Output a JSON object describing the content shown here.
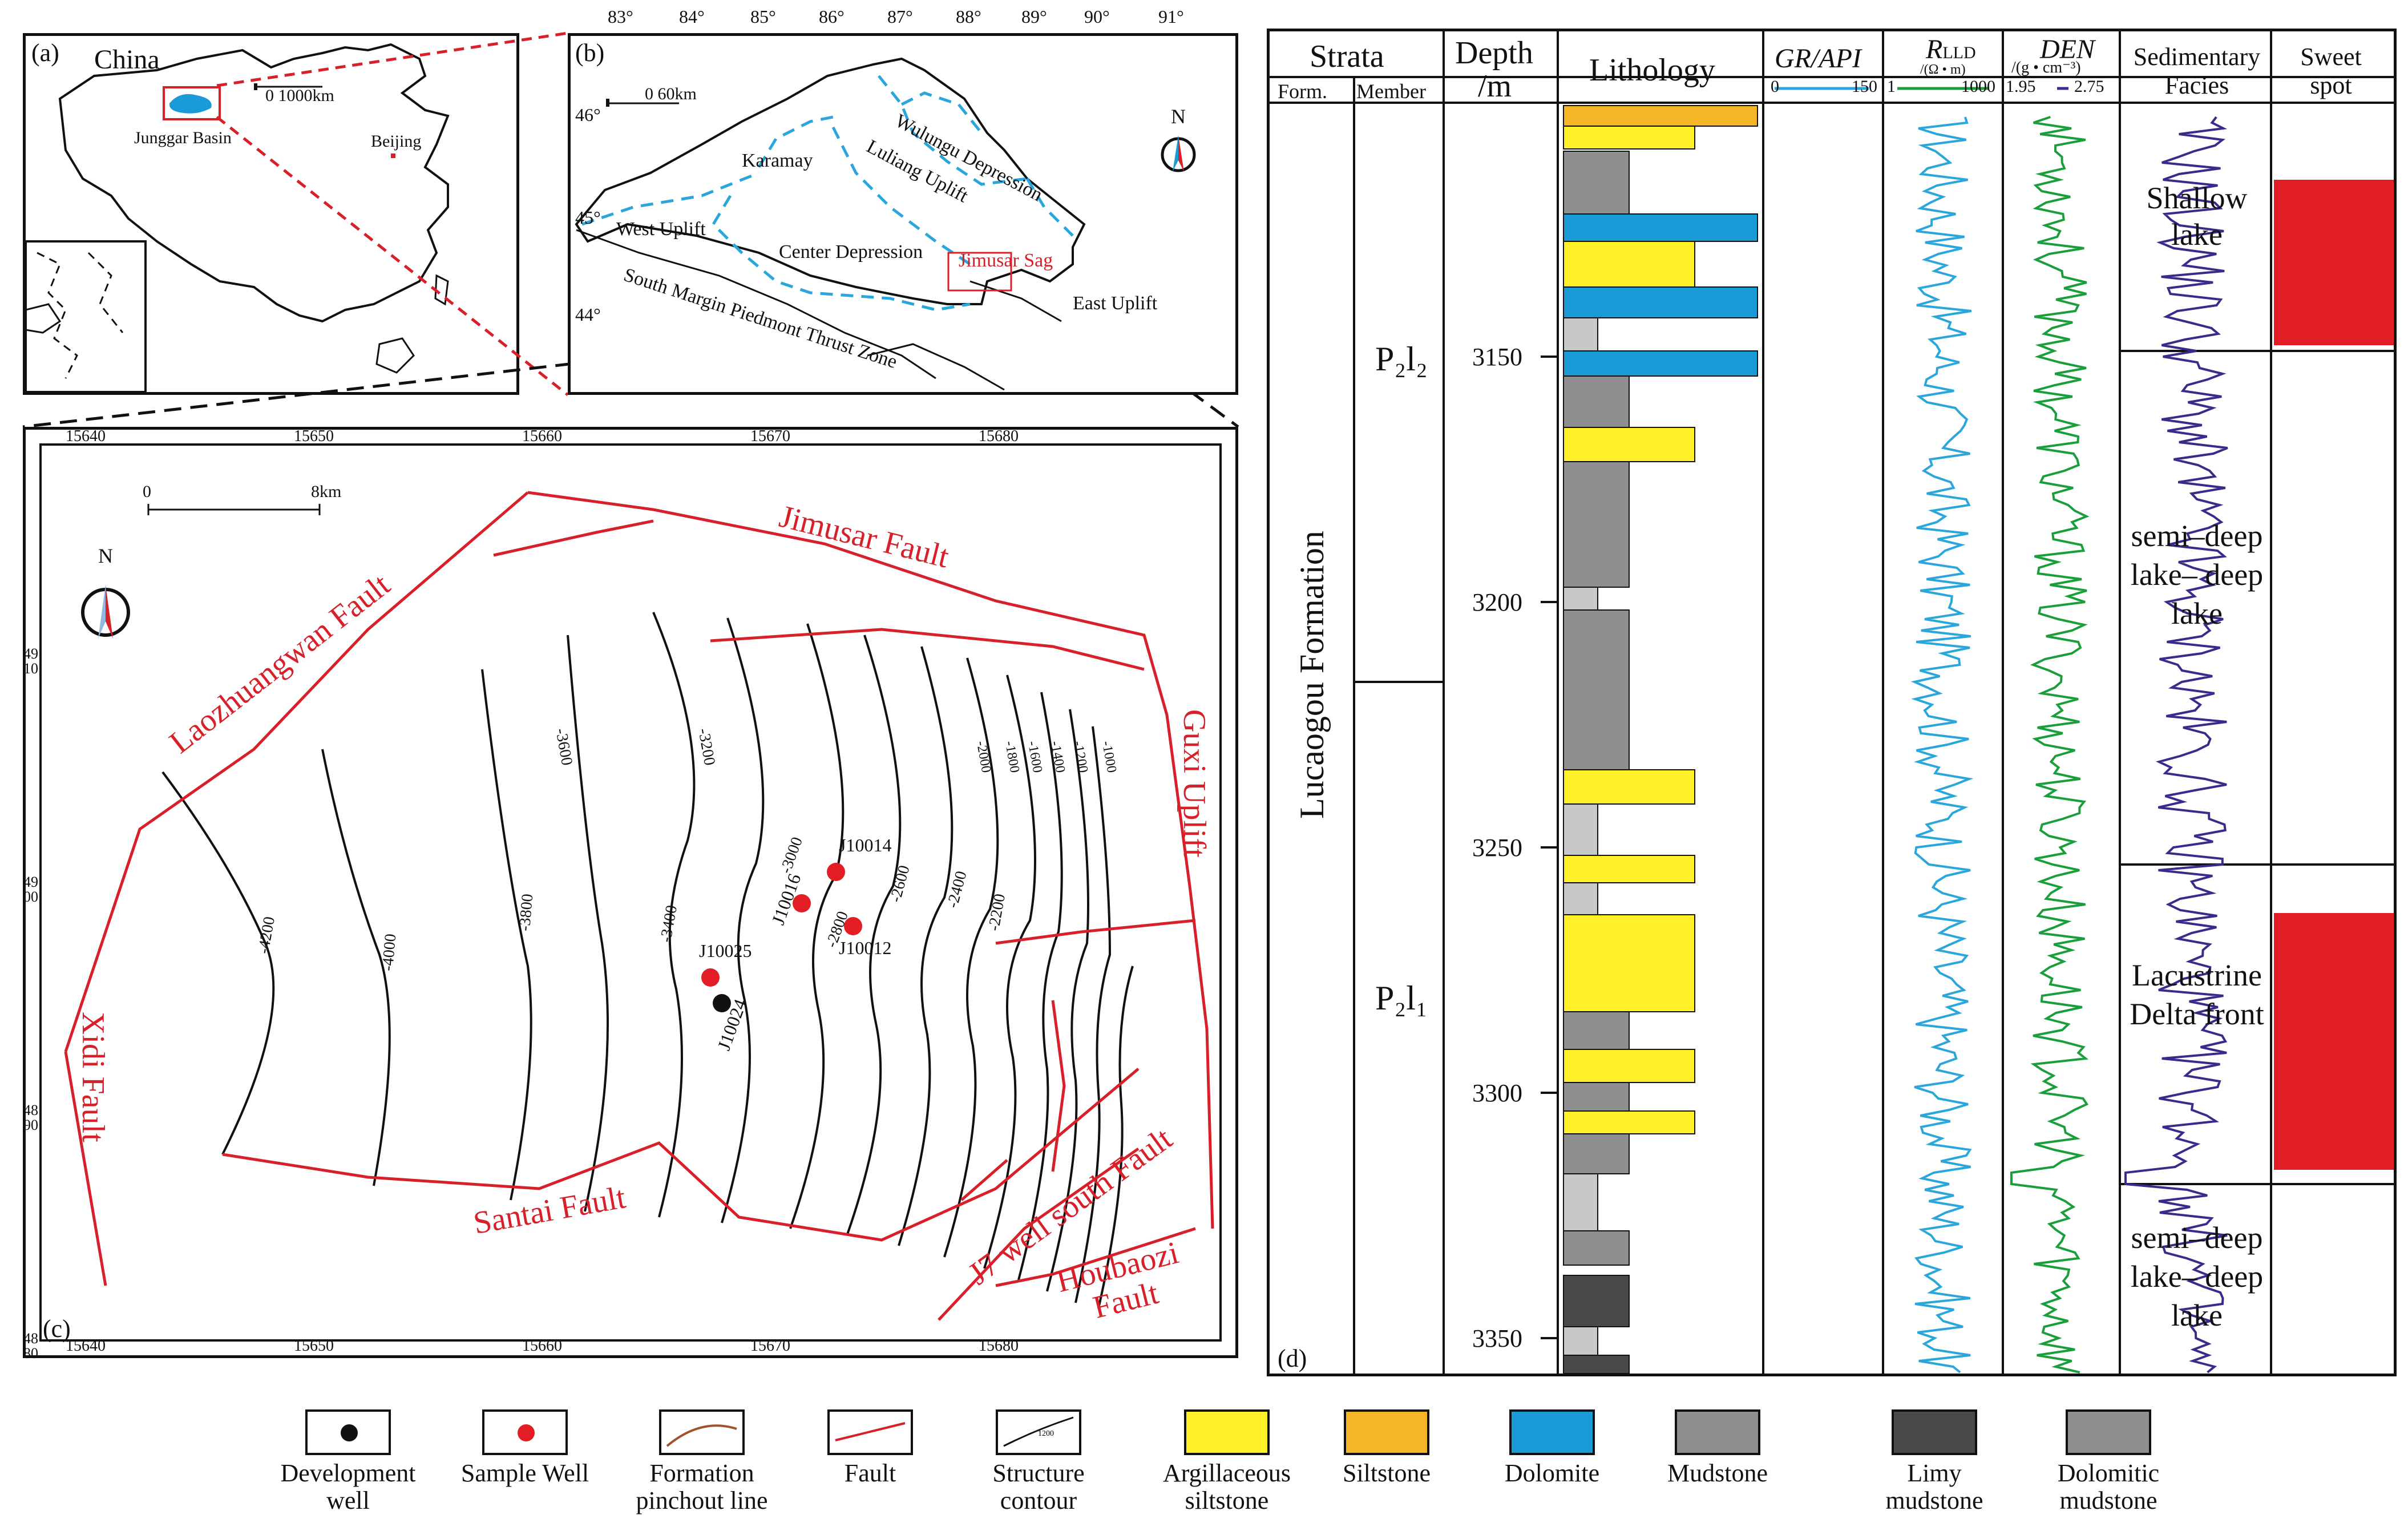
{
  "panel_a": {
    "label": "(a)",
    "country": "China",
    "scale": "0    1000km",
    "basin": "Junggar Basin",
    "city": "Beijing"
  },
  "panel_b": {
    "label": "(b)",
    "lon_ticks": [
      "83°",
      "84°",
      "85°",
      "86°",
      "87°",
      "88°",
      "89°",
      "90°",
      "91°"
    ],
    "lat_ticks": [
      "46°",
      "45°",
      "44°"
    ],
    "scale": "0     60km",
    "north": "N",
    "units": [
      "Wulungu Depression",
      "Luliang Uplift",
      "Karamay",
      "West Uplift",
      "Center Depression",
      "Jimusar Sag",
      "East Uplift",
      "South Margin Piedmont Thrust Zone"
    ]
  },
  "panel_c": {
    "label": "(c)",
    "x_ticks_top": [
      "15640",
      "15650",
      "15660",
      "15670",
      "15680"
    ],
    "x_ticks_bottom": [
      "15640",
      "15650",
      "15660",
      "15670",
      "15680"
    ],
    "y_ticks": [
      "4910",
      "4900",
      "4890",
      "4880"
    ],
    "scale": [
      "0",
      "8km"
    ],
    "north": "N",
    "faults": [
      "Laozhuangwan Fault",
      "Jimusar  Fault",
      "Guxi Uplift",
      "Xidi Fault",
      "Santai  Fault",
      "J7 well  south Fault",
      "Houbaozi Fault"
    ],
    "contours": [
      "-4200",
      "-4000",
      "-3800",
      "-3600",
      "-3400",
      "-3200",
      "-3000",
      "-2800",
      "-2600",
      "-2400",
      "-2200",
      "-2000",
      "-1800",
      "-1600",
      "-1400",
      "-1200",
      "-1000"
    ],
    "wells": [
      {
        "name": "J10014",
        "type": "sample"
      },
      {
        "name": "J10016",
        "type": "sample"
      },
      {
        "name": "J10012",
        "type": "sample"
      },
      {
        "name": "J10025",
        "type": "sample"
      },
      {
        "name": "J10024",
        "type": "development"
      }
    ]
  },
  "panel_d": {
    "label": "(d)",
    "headers": {
      "strata": "Strata",
      "form": "Form.",
      "member": "Member",
      "depth": "Depth",
      "depth_unit": "/m",
      "lithology": "Lithology",
      "gr": "GR/API",
      "gr_scale": [
        "0",
        "150"
      ],
      "rlld": "R",
      "rlld_sub": "LLD",
      "rlld_unit": "/(Ω • m)",
      "rlld_scale": [
        "1",
        "1000"
      ],
      "den": "DEN",
      "den_unit": "/(g • cm⁻³)",
      "den_scale": [
        "1.95",
        "2.75"
      ],
      "facies": "Sedimentary Facies",
      "sweet": "Sweet spot"
    },
    "formation": "Lucaogou Formation",
    "members": [
      "P₂l₂",
      "P₂l₁"
    ],
    "depth_ticks": [
      "3150",
      "3200",
      "3250",
      "3300",
      "3350"
    ],
    "facies": [
      "Shallow lake",
      "semi–deep lake– deep lake",
      "Lacustrine Delta front",
      "semi–deep lake– deep lake"
    ]
  },
  "legend": [
    {
      "label": "Development well",
      "key": "development-well"
    },
    {
      "label": "Sample Well",
      "key": "sample-well"
    },
    {
      "label": "Formation pinchout line",
      "key": "pinchout-line"
    },
    {
      "label": "Fault",
      "key": "fault"
    },
    {
      "label": "Structure contour",
      "key": "structure-contour",
      "sample_value": "1200"
    },
    {
      "label": "Argillaceous siltstone",
      "key": "argillaceous-siltstone"
    },
    {
      "label": "Siltstone",
      "key": "siltstone"
    },
    {
      "label": "Dolomite",
      "key": "dolomite"
    },
    {
      "label": "Mudstone",
      "key": "mudstone"
    },
    {
      "label": "Limy mudstone",
      "key": "limy-mudstone"
    },
    {
      "label": "Dolomitic mudstone",
      "key": "dolomitic-mudstone"
    }
  ],
  "colors": {
    "fault": "#d8202a",
    "sweet": "#e21d25",
    "dolomite": "#1a9bd7",
    "silt": "#f5b628",
    "argsilt": "#fff02a",
    "mud": "#8f8f8f",
    "limy": "#4a4a4a",
    "gr": "#2aa6db",
    "rlld": "#1a9e3c",
    "den": "#3a2a8a",
    "basin": "#1a9bd7"
  }
}
